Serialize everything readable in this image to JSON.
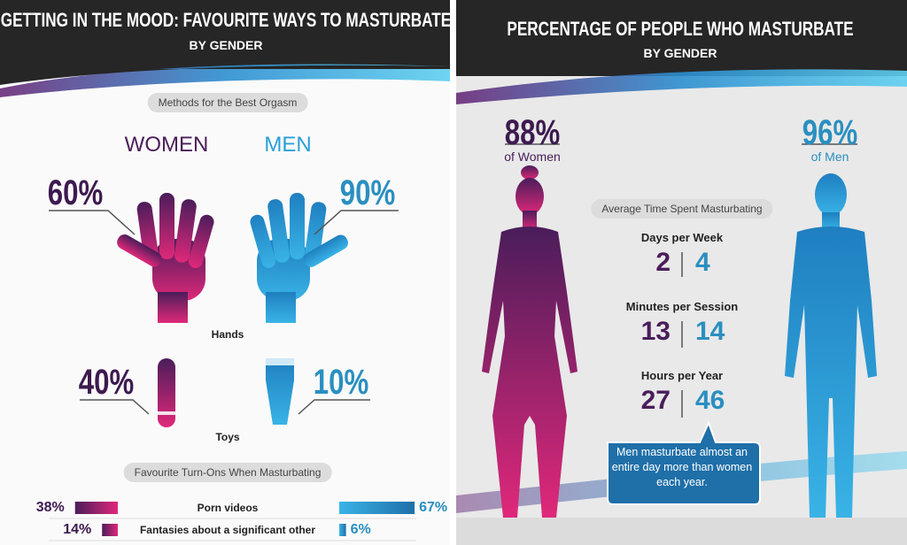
{
  "left": {
    "title": "GETTING IN THE MOOD: FAVOURITE WAYS TO MASTURBATE",
    "subtitle": "BY GENDER",
    "methods_heading": "Methods for the Best Orgasm",
    "women_label": "WOMEN",
    "men_label": "MEN",
    "hands": {
      "label": "Hands",
      "women": "60%",
      "men": "90%"
    },
    "toys": {
      "label": "Toys",
      "women": "40%",
      "men": "10%"
    },
    "turnons_heading": "Favourite Turn-Ons When Masturbating",
    "turnons": [
      {
        "label": "Porn videos",
        "women": {
          "value": 38,
          "label": "38%"
        },
        "men": {
          "value": 67,
          "label": "67%"
        }
      },
      {
        "label": "Fantasies about a significant other",
        "women": {
          "value": 14,
          "label": "14%"
        },
        "men": {
          "value": 6,
          "label": "6%"
        }
      }
    ]
  },
  "right": {
    "title": "PERCENTAGE OF PEOPLE WHO MASTURBATE",
    "subtitle": "BY GENDER",
    "women": {
      "percent": "88%",
      "label": "of Women"
    },
    "men": {
      "percent": "96%",
      "label": "of Men"
    },
    "time_heading": "Average Time Spent Masturbating",
    "stats": [
      {
        "label": "Days per Week",
        "women": 2,
        "men": 4
      },
      {
        "label": "Minutes per Session",
        "women": 13,
        "men": 14
      },
      {
        "label": "Hours per Year",
        "women": 27,
        "men": 46
      }
    ],
    "callout": "Men masturbate almost an entire day more than women each year."
  }
}
